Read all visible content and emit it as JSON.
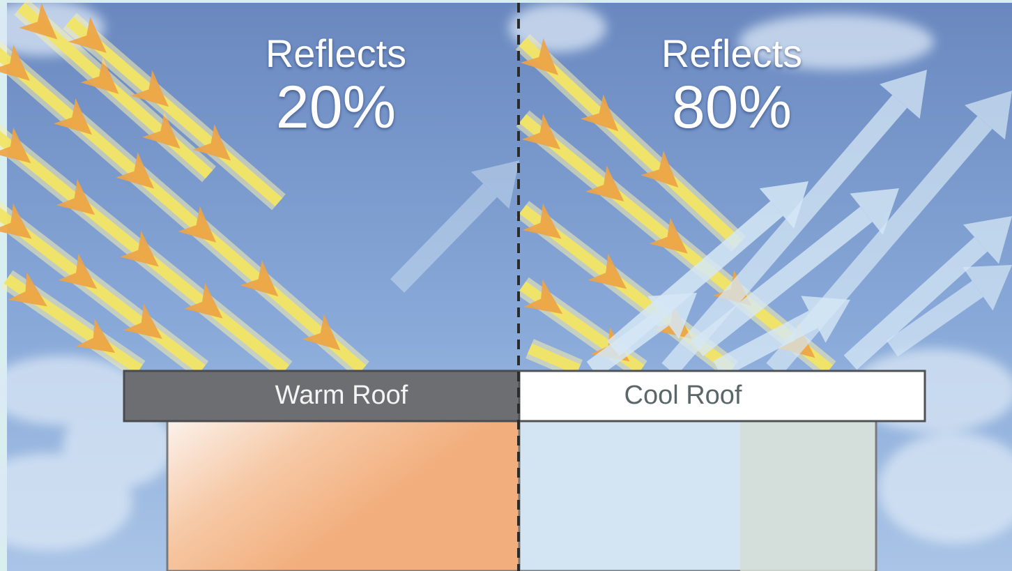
{
  "panels": {
    "warm": {
      "heading": "Reflects",
      "percent": "20%",
      "roof_label": "Warm Roof",
      "reflectance": 0.2
    },
    "cool": {
      "heading": "Reflects",
      "percent": "80%",
      "roof_label": "Cool Roof",
      "reflectance": 0.8
    }
  },
  "colors": {
    "sky": "#6e90c4",
    "sky_light": "#a9c4e6",
    "incoming_arrow_core": "#f3e566",
    "incoming_arrow_head": "#eda445",
    "reflected_arrow": "#d6e8f6",
    "warm_roof": "#6d6e72",
    "cool_roof": "#ffffff",
    "warm_interior": "#f2ae7c",
    "cool_interior": "#d3e4f2",
    "divider": "#2b2b2b"
  }
}
